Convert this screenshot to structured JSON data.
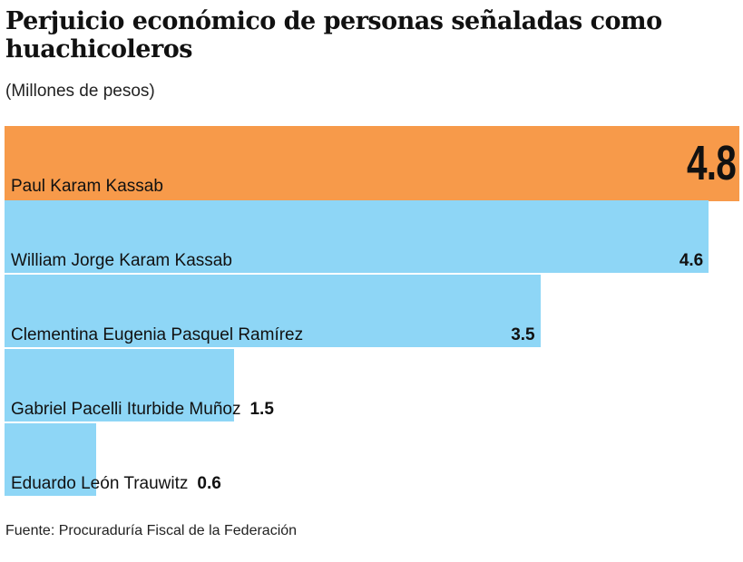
{
  "title": "Perjuicio económico de personas señaladas como huachicoleros",
  "subtitle": "(Millones de pesos)",
  "source": "Fuente: Procuraduría Fiscal de la Federación",
  "chart_data": {
    "type": "bar",
    "orientation": "horizontal",
    "categories": [
      "Paul Karam Kassab",
      "William Jorge Karam Kassab",
      "Clementina Eugenia Pasquel Ramírez",
      "Gabriel Pacelli Iturbide Muñoz",
      "Eduardo León Trauwitz"
    ],
    "values": [
      4.8,
      4.6,
      3.5,
      1.5,
      0.6
    ],
    "value_labels": [
      "4.8",
      "4.6",
      "3.5",
      "1.5",
      "0.6"
    ],
    "colors": [
      "#f79a4a",
      "#8ed6f6",
      "#8ed6f6",
      "#8ed6f6",
      "#8ed6f6"
    ],
    "xlim": [
      0,
      4.8
    ],
    "grid": false,
    "title": "Perjuicio económico de personas señaladas como huachicoleros",
    "subtitle": "(Millones de pesos)"
  }
}
